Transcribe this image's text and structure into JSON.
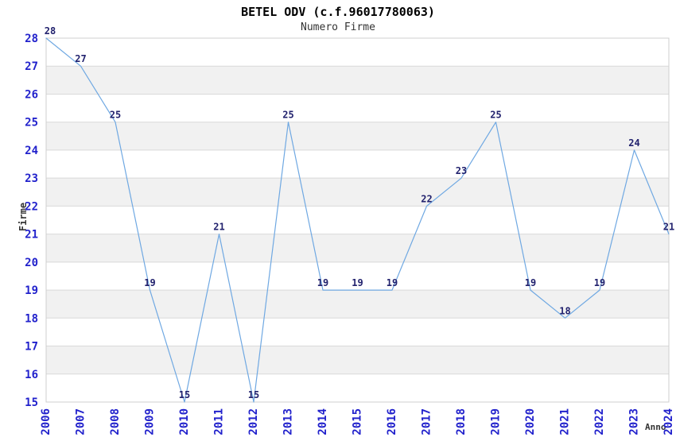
{
  "chart_data": {
    "type": "line",
    "title": "BETEL ODV (c.f.96017780063)",
    "subtitle": "Numero Firme",
    "xlabel": "Anno",
    "ylabel": "Firme",
    "x": [
      "2006",
      "2007",
      "2008",
      "2009",
      "2010",
      "2011",
      "2012",
      "2013",
      "2014",
      "2015",
      "2016",
      "2017",
      "2018",
      "2019",
      "2020",
      "2021",
      "2022",
      "2023",
      "2024"
    ],
    "series": [
      {
        "name": "Numero Firme",
        "values": [
          28,
          27,
          25,
          19,
          15,
          21,
          15,
          25,
          19,
          19,
          19,
          22,
          23,
          25,
          19,
          18,
          19,
          24,
          21
        ]
      }
    ],
    "ylim": [
      15,
      28
    ],
    "ytick_step": 1,
    "grid": true,
    "banded_rows": true,
    "legend_position": "none",
    "data_labels_visible": true,
    "colors": {
      "line": "#6FA8E2",
      "tick_label": "#2222CC",
      "data_label": "#22226E",
      "band": "#F1F1F1",
      "grid_line": "#D9D9D9",
      "plot_border": "#CFCFCF",
      "axis_title": "#333333",
      "title_text": "#000000",
      "background": "#FFFFFF"
    }
  }
}
